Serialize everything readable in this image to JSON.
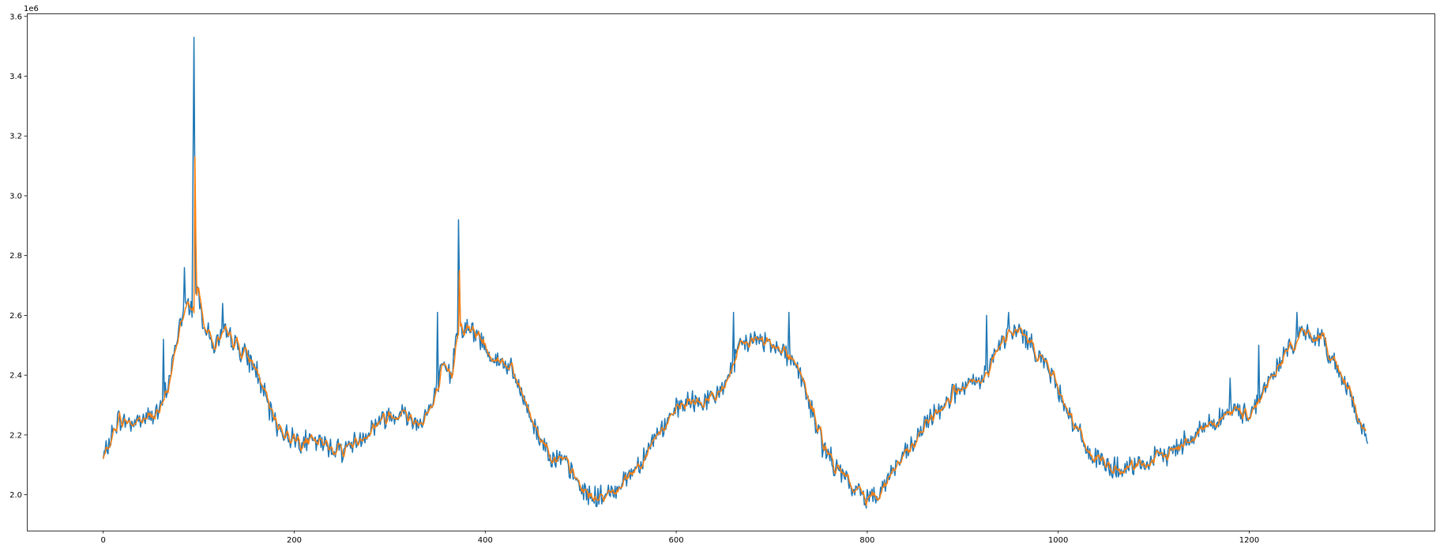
{
  "chart_data": {
    "type": "line",
    "title": "",
    "xlabel": "",
    "ylabel": "",
    "xlim": [
      -80,
      1394
    ],
    "ylim": [
      1880000,
      3610000
    ],
    "grid": false,
    "legend": "none",
    "y_offset_label": "1e6",
    "x_ticks": [
      0,
      200,
      400,
      600,
      800,
      1000,
      1200
    ],
    "x_tick_labels": [
      "0",
      "200",
      "400",
      "600",
      "800",
      "1000",
      "1200"
    ],
    "y_ticks": [
      2000000,
      2200000,
      2400000,
      2600000,
      2800000,
      3000000,
      3200000,
      3400000,
      3600000
    ],
    "y_tick_labels": [
      "2.0",
      "2.2",
      "2.4",
      "2.6",
      "2.8",
      "3.0",
      "3.2",
      "3.4",
      "3.6"
    ],
    "series_colors": [
      "#1f77b4",
      "#ff7f0e"
    ],
    "series_smoothing": [
      1,
      3
    ],
    "series_x_max": [
      1324,
      1322
    ],
    "anchors": [
      [
        0,
        2120000
      ],
      [
        15,
        2250000
      ],
      [
        30,
        2240000
      ],
      [
        45,
        2260000
      ],
      [
        60,
        2280000
      ],
      [
        70,
        2400000
      ],
      [
        80,
        2570000
      ],
      [
        88,
        2640000
      ],
      [
        95,
        2620000
      ],
      [
        98,
        2700000
      ],
      [
        105,
        2580000
      ],
      [
        115,
        2500000
      ],
      [
        130,
        2540000
      ],
      [
        145,
        2480000
      ],
      [
        160,
        2420000
      ],
      [
        175,
        2270000
      ],
      [
        190,
        2200000
      ],
      [
        210,
        2180000
      ],
      [
        230,
        2170000
      ],
      [
        250,
        2150000
      ],
      [
        270,
        2190000
      ],
      [
        290,
        2250000
      ],
      [
        310,
        2280000
      ],
      [
        330,
        2240000
      ],
      [
        345,
        2300000
      ],
      [
        355,
        2420000
      ],
      [
        365,
        2400000
      ],
      [
        370,
        2560000
      ],
      [
        380,
        2560000
      ],
      [
        395,
        2520000
      ],
      [
        410,
        2450000
      ],
      [
        425,
        2430000
      ],
      [
        440,
        2320000
      ],
      [
        455,
        2200000
      ],
      [
        470,
        2130000
      ],
      [
        485,
        2100000
      ],
      [
        500,
        2020000
      ],
      [
        515,
        1990000
      ],
      [
        530,
        2000000
      ],
      [
        545,
        2050000
      ],
      [
        560,
        2100000
      ],
      [
        575,
        2180000
      ],
      [
        590,
        2240000
      ],
      [
        605,
        2300000
      ],
      [
        620,
        2310000
      ],
      [
        640,
        2320000
      ],
      [
        655,
        2400000
      ],
      [
        670,
        2510000
      ],
      [
        690,
        2520000
      ],
      [
        710,
        2490000
      ],
      [
        725,
        2440000
      ],
      [
        740,
        2300000
      ],
      [
        755,
        2150000
      ],
      [
        770,
        2080000
      ],
      [
        785,
        2020000
      ],
      [
        800,
        1990000
      ],
      [
        815,
        2020000
      ],
      [
        830,
        2100000
      ],
      [
        845,
        2150000
      ],
      [
        860,
        2230000
      ],
      [
        875,
        2290000
      ],
      [
        890,
        2340000
      ],
      [
        905,
        2360000
      ],
      [
        920,
        2380000
      ],
      [
        930,
        2450000
      ],
      [
        945,
        2530000
      ],
      [
        960,
        2550000
      ],
      [
        975,
        2490000
      ],
      [
        990,
        2420000
      ],
      [
        1005,
        2320000
      ],
      [
        1020,
        2210000
      ],
      [
        1035,
        2130000
      ],
      [
        1050,
        2100000
      ],
      [
        1065,
        2080000
      ],
      [
        1080,
        2090000
      ],
      [
        1095,
        2110000
      ],
      [
        1110,
        2130000
      ],
      [
        1125,
        2160000
      ],
      [
        1140,
        2200000
      ],
      [
        1155,
        2230000
      ],
      [
        1170,
        2260000
      ],
      [
        1185,
        2280000
      ],
      [
        1200,
        2270000
      ],
      [
        1215,
        2350000
      ],
      [
        1230,
        2430000
      ],
      [
        1245,
        2510000
      ],
      [
        1260,
        2540000
      ],
      [
        1275,
        2520000
      ],
      [
        1290,
        2440000
      ],
      [
        1305,
        2350000
      ],
      [
        1315,
        2240000
      ],
      [
        1324,
        2170000
      ]
    ],
    "spikes": [
      {
        "series": 0,
        "x": 95,
        "y": 3530000
      },
      {
        "series": 0,
        "x": 94,
        "y": 3100000
      },
      {
        "series": 0,
        "x": 96,
        "y": 3000000
      },
      {
        "series": 1,
        "x": 96,
        "y": 3130000
      },
      {
        "series": 1,
        "x": 97,
        "y": 2850000
      },
      {
        "series": 0,
        "x": 372,
        "y": 2920000
      },
      {
        "series": 0,
        "x": 373,
        "y": 2700000
      },
      {
        "series": 1,
        "x": 373,
        "y": 2750000
      },
      {
        "series": 0,
        "x": 85,
        "y": 2760000
      },
      {
        "series": 0,
        "x": 63,
        "y": 2520000
      },
      {
        "series": 0,
        "x": 350,
        "y": 2610000
      },
      {
        "series": 0,
        "x": 660,
        "y": 2610000
      },
      {
        "series": 0,
        "x": 718,
        "y": 2610000
      },
      {
        "series": 0,
        "x": 925,
        "y": 2600000
      },
      {
        "series": 0,
        "x": 948,
        "y": 2610000
      },
      {
        "series": 0,
        "x": 1210,
        "y": 2500000
      },
      {
        "series": 0,
        "x": 1250,
        "y": 2610000
      },
      {
        "series": 0,
        "x": 1180,
        "y": 2390000
      },
      {
        "series": 0,
        "x": 125,
        "y": 2640000
      }
    ],
    "noise_amplitude": 30000,
    "noise_seed": 7
  }
}
